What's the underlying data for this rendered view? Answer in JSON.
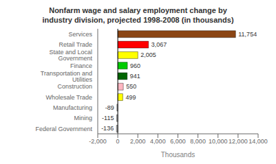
{
  "chart_data": {
    "type": "bar",
    "orientation": "horizontal",
    "title": "Nonfarm wage and salary employment change by\nindustry division, projected 1998-2008 (in thousands)",
    "categories": [
      "Federal Government",
      "Mining",
      "Manufacturing",
      "Wholesale Trade",
      "Construction",
      "Transportation and Utilities",
      "Finance",
      "State and Local Government",
      "Retail Trade",
      "Services"
    ],
    "values": [
      -136,
      -115,
      -89,
      499,
      550,
      941,
      960,
      2005,
      3067,
      11754
    ],
    "value_labels": [
      "-136",
      "-115",
      "-89",
      "499",
      "550",
      "941",
      "960",
      "2,005",
      "3,067",
      "11,754"
    ],
    "colors": [
      "#c0c0c0",
      "#c0c0c0",
      "#c0c0c0",
      "#ffff00",
      "#ffb6c1",
      "#006400",
      "#00cc00",
      "#ffff00",
      "#ff0000",
      "#8B4513"
    ],
    "xlabel": "Thousands",
    "xlim": [
      -2000,
      14000
    ],
    "xticks": [
      {
        "value": -2000,
        "label": "-2,000"
      },
      0,
      {
        "value": 2000,
        "label": "2,000"
      },
      {
        "value": 4000,
        "label": "4,000"
      },
      {
        "value": 6000,
        "label": "6,000"
      },
      {
        "value": 8000,
        "label": "8,000"
      },
      {
        "value": 10000,
        "label": "10,000"
      },
      {
        "value": 12000,
        "label": "12,000"
      },
      {
        "value": 14000,
        "label": "14,000"
      }
    ],
    "data_labels": true,
    "grid": false
  }
}
